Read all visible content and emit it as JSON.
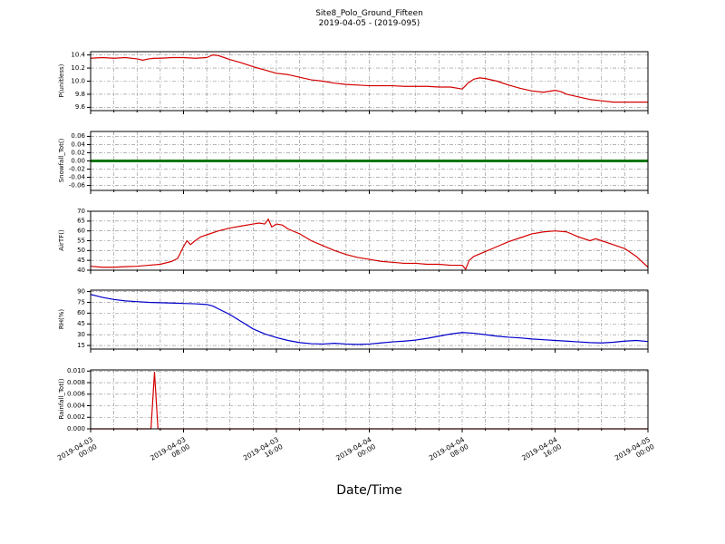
{
  "title": "Site8_Polo_Ground_Fifteen",
  "subtitle": "2019-04-05 - (2019-095)",
  "xlabel": "Date/Time",
  "x_axis": {
    "range": [
      0,
      48
    ],
    "ticks": [
      0,
      8,
      16,
      24,
      32,
      40,
      48
    ],
    "tick_labels": [
      [
        "2019-04-03",
        "00:00"
      ],
      [
        "2019-04-03",
        "08:00"
      ],
      [
        "2019-04-03",
        "16:00"
      ],
      [
        "2019-04-04",
        "00:00"
      ],
      [
        "2019-04-04",
        "08:00"
      ],
      [
        "2019-04-04",
        "16:00"
      ],
      [
        "2019-04-05",
        "00:00"
      ]
    ],
    "minor_grid_step_hours": 2
  },
  "grid": {
    "on": true,
    "color": "#888888",
    "style": "dash-dot"
  },
  "chart_data": [
    {
      "type": "line",
      "ylabel": "P(unitless)",
      "color": "#d40000",
      "line_width": 1.2,
      "ylim": [
        9.55,
        10.45
      ],
      "ytick_values": [
        9.6,
        9.8,
        10.0,
        10.2,
        10.4
      ],
      "ytick_labels": [
        "9.6",
        "9.8",
        "10.0",
        "10.2",
        "10.4"
      ],
      "x": [
        0,
        1,
        2,
        3,
        4,
        4.5,
        5,
        5.5,
        6,
        7,
        8,
        9,
        10,
        10.5,
        11,
        11.5,
        12,
        13,
        14,
        15,
        16,
        17,
        18,
        19,
        20,
        21,
        22,
        23,
        24,
        25,
        26,
        27,
        28,
        29,
        30,
        31,
        32,
        32.5,
        33,
        33.5,
        34,
        35,
        36,
        37,
        38,
        39,
        40,
        40.5,
        41,
        42,
        43,
        44,
        45,
        46,
        47,
        48
      ],
      "y": [
        10.35,
        10.36,
        10.35,
        10.36,
        10.34,
        10.32,
        10.34,
        10.35,
        10.35,
        10.36,
        10.36,
        10.35,
        10.36,
        10.4,
        10.39,
        10.36,
        10.33,
        10.28,
        10.22,
        10.17,
        10.12,
        10.1,
        10.06,
        10.02,
        10.0,
        9.97,
        9.95,
        9.94,
        9.93,
        9.93,
        9.93,
        9.92,
        9.92,
        9.92,
        9.91,
        9.91,
        9.88,
        9.97,
        10.03,
        10.05,
        10.04,
        10.0,
        9.94,
        9.89,
        9.85,
        9.83,
        9.86,
        9.84,
        9.8,
        9.76,
        9.72,
        9.7,
        9.68,
        9.68,
        9.68,
        9.68
      ]
    },
    {
      "type": "line",
      "ylabel": "Snowfall_Tot()",
      "color": "#007700",
      "line_width": 3,
      "ylim": [
        -0.072,
        0.072
      ],
      "ytick_values": [
        -0.06,
        -0.04,
        -0.02,
        0.0,
        0.02,
        0.04,
        0.06
      ],
      "ytick_labels": [
        "-0.06",
        "-0.04",
        "-0.02",
        "0.00",
        "0.02",
        "0.04",
        "0.06"
      ],
      "x": [
        0,
        48
      ],
      "y": [
        0,
        0
      ]
    },
    {
      "type": "line",
      "ylabel": "AirTF()",
      "color": "#d40000",
      "line_width": 1.2,
      "ylim": [
        40,
        70
      ],
      "ytick_values": [
        40,
        45,
        50,
        55,
        60,
        65,
        70
      ],
      "ytick_labels": [
        "40",
        "45",
        "50",
        "55",
        "60",
        "65",
        "70"
      ],
      "x": [
        0,
        1,
        2,
        3,
        4,
        5,
        6,
        7,
        7.5,
        8,
        8.3,
        8.6,
        9,
        9.5,
        10,
        11,
        12,
        13,
        14,
        14.5,
        15,
        15.3,
        15.6,
        16,
        16.5,
        17,
        18,
        19,
        20,
        21,
        22,
        23,
        24,
        25,
        26,
        27,
        28,
        29,
        30,
        31,
        32,
        32.3,
        32.6,
        33,
        34,
        35,
        36,
        37,
        38,
        39,
        40,
        41,
        42,
        43,
        43.5,
        44,
        45,
        46,
        47,
        48
      ],
      "y": [
        42,
        41.5,
        41.5,
        41.8,
        42,
        42.5,
        43,
        44.5,
        46,
        52,
        55,
        53,
        55,
        57,
        58,
        60,
        61.5,
        62.5,
        63.5,
        64,
        63.5,
        66,
        62,
        63.5,
        63,
        61,
        58.5,
        55,
        52.5,
        50,
        48,
        46.5,
        45.5,
        44.5,
        44,
        43.5,
        43.5,
        43,
        43,
        42.5,
        42.5,
        40.5,
        45,
        47,
        49.5,
        52,
        54.5,
        56.5,
        58.5,
        59.5,
        60,
        59.5,
        57,
        55,
        56,
        55,
        53,
        51,
        47,
        41.5
      ]
    },
    {
      "type": "line",
      "ylabel": "RH(%)",
      "color": "#0000cc",
      "line_width": 1.2,
      "ylim": [
        10,
        92
      ],
      "ytick_values": [
        15,
        30,
        45,
        60,
        75,
        90
      ],
      "ytick_labels": [
        "15",
        "30",
        "45",
        "60",
        "75",
        "90"
      ],
      "x": [
        0,
        0.5,
        1,
        2,
        3,
        4,
        5,
        6,
        7,
        8,
        9,
        10,
        10.5,
        11,
        12,
        13,
        14,
        15,
        16,
        17,
        18,
        19,
        20,
        21,
        22,
        23,
        24,
        25,
        26,
        27,
        28,
        29,
        30,
        31,
        32,
        33,
        34,
        35,
        36,
        37,
        38,
        39,
        40,
        41,
        42,
        43,
        44,
        45,
        46,
        47,
        48
      ],
      "y": [
        86,
        84,
        82,
        79,
        77,
        76,
        75,
        74.5,
        74,
        73.5,
        73,
        72,
        70,
        66,
        58,
        48,
        38,
        31,
        26,
        22,
        19,
        17.5,
        17,
        18,
        17,
        16.5,
        17,
        18.5,
        20,
        21,
        22.5,
        25,
        28,
        31,
        33,
        32,
        30,
        28,
        26.5,
        25.5,
        24,
        23,
        22,
        21,
        20,
        19,
        18.5,
        19.5,
        21,
        22,
        20.5
      ]
    },
    {
      "type": "line",
      "ylabel": "Rainfall_Tot()",
      "color": "#d40000",
      "line_width": 1.2,
      "ylim": [
        0,
        0.0102
      ],
      "ytick_values": [
        0.0,
        0.002,
        0.004,
        0.006,
        0.008,
        0.01
      ],
      "ytick_labels": [
        "0.000",
        "0.002",
        "0.004",
        "0.006",
        "0.008",
        "0.010"
      ],
      "x": [
        0,
        5.2,
        5.5,
        5.8,
        48
      ],
      "y": [
        0,
        0,
        0.0098,
        0,
        0
      ]
    }
  ]
}
